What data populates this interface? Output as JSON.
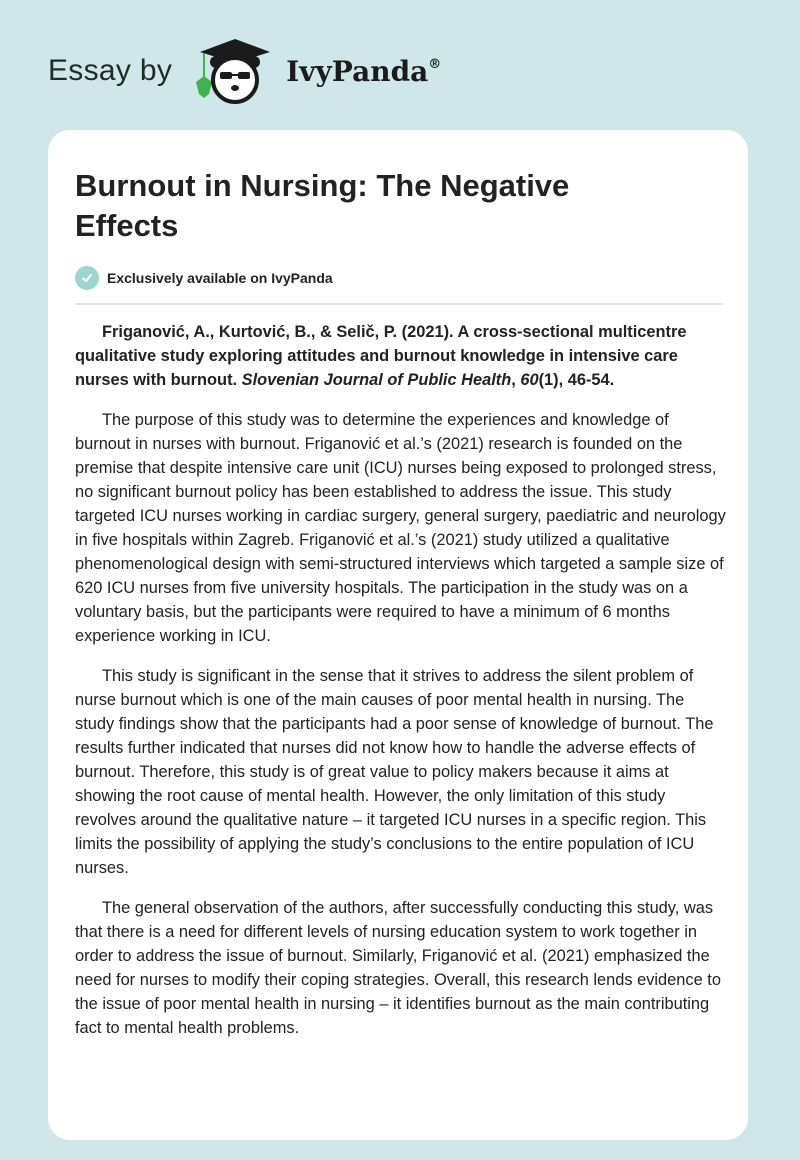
{
  "header": {
    "essay_by": "Essay by",
    "brand_name": "IvyPanda",
    "registered": "®"
  },
  "article": {
    "title": "Burnout in Nursing: The Negative Effects",
    "exclusive_label": "Exclusively available on IvyPanda",
    "citation": {
      "authors_title": "Friganović, A., Kurtović, B., & Selič, P. (2021). A cross-sectional multicentre qualitative study exploring attitudes and burnout knowledge in intensive care nurses with burnout. ",
      "journal": "Slovenian Journal of Public Health",
      "sep": ", ",
      "volume": "60",
      "rest": "(1), 46-54."
    },
    "paragraphs": [
      "The purpose of this study was to determine the experiences and knowledge of burnout in nurses with burnout. Friganović et al.’s (2021) research is founded on the premise that despite intensive care unit (ICU) nurses being exposed to prolonged stress, no significant burnout policy has been established to address the issue. This study targeted ICU nurses working in cardiac surgery, general surgery, paediatric and neurology in five hospitals within Zagreb. Friganović et al.’s (2021) study utilized a qualitative phenomenological design with semi-structured interviews which targeted a sample size of 620 ICU nurses from five university hospitals. The participation in the study was on a voluntary basis, but the participants were required to have a minimum of 6 months experience working in ICU.",
      "This study is significant in the sense that it strives to address the silent problem of nurse burnout which is one of the main causes of poor mental health in nursing. The study findings show that the participants had a poor sense of knowledge of burnout. The results further indicated that nurses did not know how to handle the adverse effects of burnout. Therefore, this study is of great value to policy makers because it aims at showing the root cause of mental health. However, the only limitation of this study revolves around the qualitative nature – it targeted ICU nurses in a specific region. This limits the possibility of applying the study’s conclusions to the entire population of ICU nurses.",
      "The general observation of the authors, after successfully conducting this study, was that there is a need for different levels of nursing education system to work together in order to address the issue of burnout. Similarly, Friganović et al. (2021) emphasized the need for nurses to modify their coping strategies. Overall, this research lends evidence to the issue of poor mental health in nursing – it identifies burnout as the main contributing fact to mental health problems."
    ]
  },
  "colors": {
    "background": "#cfe7e9",
    "check_badge": "#9fd5d1",
    "ivy_green": "#3fb34f"
  }
}
